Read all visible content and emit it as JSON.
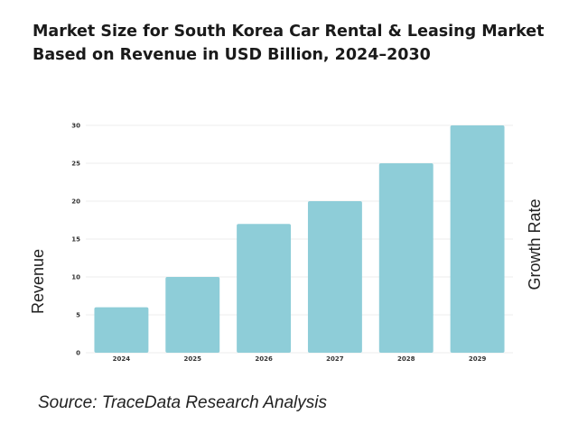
{
  "title": "Market Size for South Korea Car Rental & Leasing Market Based on Revenue in USD Billion, 2024–2030",
  "source": "Source: TraceData Research Analysis",
  "chart_data": {
    "type": "bar",
    "categories": [
      "2024",
      "2025",
      "2026",
      "2027",
      "2028",
      "2029"
    ],
    "values": [
      6,
      10,
      17,
      20,
      25,
      30
    ],
    "xlabel": "",
    "ylabel": "Revenue",
    "y2label": "Growth Rate",
    "ylim": [
      0,
      30
    ],
    "yticks": [
      0,
      5,
      10,
      15,
      20,
      25,
      30
    ],
    "grid": true,
    "bar_color": "#8ecdd8",
    "grid_color": "#eeeeee"
  }
}
